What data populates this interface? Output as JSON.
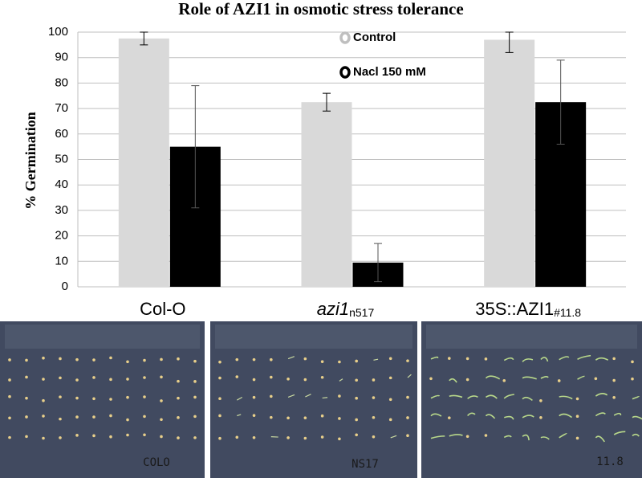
{
  "chart_data": {
    "type": "bar",
    "title": "Role of AZI1 in osmotic stress tolerance",
    "y_label": "% Germination",
    "categories": [
      "Col-O",
      "azi1",
      "35S::AZI1"
    ],
    "category_subscripts": {
      "1": "n517",
      "2": "#11.8"
    },
    "series": [
      {
        "name": "Control",
        "color": "#d9d9d9",
        "values": [
          97.5,
          72.5,
          97
        ],
        "errors": [
          2.5,
          3.5,
          5
        ]
      },
      {
        "name": "Nacl 150 mM",
        "color": "#000000",
        "values": [
          55,
          9.5,
          72.5
        ],
        "errors": [
          24,
          7.5,
          16.5
        ]
      }
    ],
    "ylim": [
      0,
      100
    ],
    "yticks": [
      0,
      10,
      20,
      30,
      40,
      50,
      60,
      70,
      80,
      90,
      100
    ],
    "grid": true,
    "legend": "top"
  },
  "photos": {
    "labels": [
      "COLO",
      "NS17",
      "11.8"
    ]
  }
}
